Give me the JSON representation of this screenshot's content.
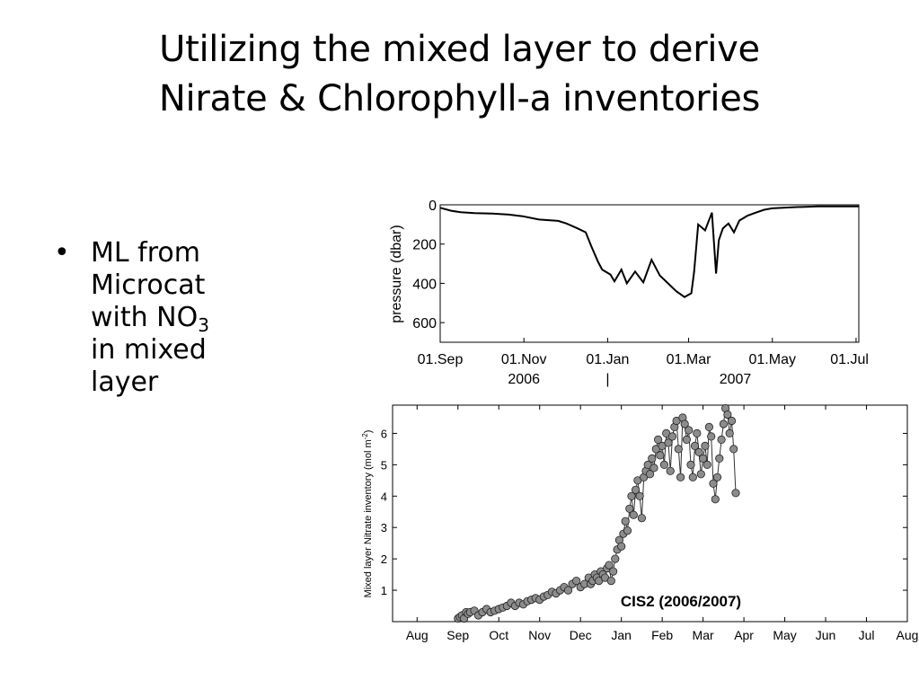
{
  "slide": {
    "title_lines": [
      "Utilizing the mixed layer to derive",
      "Nirate & Chlorophyll-a inventories"
    ],
    "bullet": {
      "marker": "•",
      "lines": [
        "ML from",
        "Microcat",
        "with NO",
        "in mixed",
        "layer"
      ],
      "subscript": "3"
    }
  },
  "chart_data": [
    {
      "type": "line",
      "title": "",
      "ylabel": "pressure (dbar)",
      "ylim": [
        0,
        700
      ],
      "y_inverted": true,
      "yticks": [
        0,
        200,
        400,
        600
      ],
      "xticks": [
        "01.Sep",
        "01.Nov",
        "01.Jan",
        "01.Mar",
        "01.May",
        "01.Jul"
      ],
      "xtick_sublabels": [
        "",
        "2006",
        "|",
        "2007",
        "",
        ""
      ],
      "color": "#000000",
      "series": [
        {
          "x_day": [
            0,
            8,
            15,
            25,
            38,
            50,
            60,
            72,
            86,
            92,
            100,
            106,
            110,
            115,
            118,
            124,
            127,
            132,
            136,
            142,
            148,
            154,
            160,
            166,
            172,
            178,
            183,
            185,
            188,
            193,
            198,
            201,
            203,
            206,
            210,
            214,
            218,
            224,
            230,
            236,
            242,
            250,
            258,
            266,
            275,
            285,
            295,
            305
          ],
          "y_dbar": [
            15,
            30,
            38,
            42,
            45,
            50,
            58,
            75,
            82,
            95,
            120,
            140,
            210,
            290,
            330,
            355,
            390,
            330,
            400,
            340,
            395,
            280,
            360,
            400,
            440,
            470,
            450,
            340,
            100,
            130,
            40,
            350,
            180,
            120,
            95,
            140,
            80,
            55,
            40,
            25,
            18,
            15,
            12,
            10,
            8,
            8,
            8,
            8
          ]
        }
      ]
    },
    {
      "type": "scatter",
      "title": "CIS2 (2006/2007)",
      "ylabel": "Mixed layer Nitrate inventory (mol m",
      "ylabel_superscript": "-2",
      "ylabel_suffix": ")",
      "ylim": [
        0,
        6.9
      ],
      "yticks": [
        1,
        2,
        3,
        4,
        5,
        6
      ],
      "xticks": [
        "Aug",
        "Sep",
        "Oct",
        "Nov",
        "Dec",
        "Jan",
        "Feb",
        "Mar",
        "Apr",
        "May",
        "Jun",
        "Jul",
        "Aug"
      ],
      "marker_color": "#8c8c8c",
      "series": [
        {
          "x_month": [
            1.0,
            1.05,
            1.1,
            1.15,
            1.2,
            1.25,
            1.3,
            1.4,
            1.5,
            1.6,
            1.7,
            1.8,
            1.9,
            2.0,
            2.1,
            2.2,
            2.3,
            2.4,
            2.5,
            2.6,
            2.7,
            2.8,
            2.9,
            3.0,
            3.1,
            3.2,
            3.3,
            3.4,
            3.5,
            3.6,
            3.7,
            3.8,
            3.9,
            4.0,
            4.1,
            4.2,
            4.25,
            4.3,
            4.35,
            4.4,
            4.45,
            4.5,
            4.55,
            4.6,
            4.65,
            4.7,
            4.75,
            4.8,
            4.85,
            4.9,
            4.95,
            5.0,
            5.05,
            5.1,
            5.15,
            5.2,
            5.25,
            5.3,
            5.35,
            5.4,
            5.45,
            5.5,
            5.55,
            5.6,
            5.65,
            5.7,
            5.75,
            5.8,
            5.85,
            5.9,
            5.95,
            6.0,
            6.05,
            6.1,
            6.15,
            6.2,
            6.25,
            6.3,
            6.35,
            6.4,
            6.45,
            6.5,
            6.55,
            6.6,
            6.65,
            6.7,
            6.75,
            6.8,
            6.85,
            6.9,
            6.95,
            7.0,
            7.05,
            7.1,
            7.15,
            7.2,
            7.25,
            7.3,
            7.35,
            7.4,
            7.45,
            7.5,
            7.55,
            7.6,
            7.65,
            7.7,
            7.75,
            7.8
          ],
          "y_mol": [
            0.1,
            0.15,
            0.2,
            0.1,
            0.3,
            0.25,
            0.3,
            0.35,
            0.2,
            0.3,
            0.4,
            0.3,
            0.35,
            0.4,
            0.45,
            0.5,
            0.6,
            0.5,
            0.6,
            0.55,
            0.65,
            0.7,
            0.75,
            0.7,
            0.8,
            0.85,
            0.95,
            0.9,
            1.0,
            1.1,
            1.0,
            1.2,
            1.3,
            1.1,
            1.2,
            1.4,
            1.2,
            1.3,
            1.5,
            1.4,
            1.3,
            1.6,
            1.5,
            1.4,
            1.7,
            1.8,
            1.3,
            1.6,
            2.0,
            2.3,
            2.6,
            2.4,
            2.8,
            3.2,
            2.9,
            3.6,
            4.0,
            3.4,
            4.2,
            4.5,
            4.0,
            3.3,
            4.6,
            4.8,
            5.0,
            4.7,
            5.2,
            4.9,
            5.5,
            5.8,
            5.3,
            5.6,
            5.0,
            6.0,
            5.7,
            4.8,
            5.9,
            6.2,
            6.4,
            5.5,
            4.6,
            6.5,
            6.3,
            5.8,
            6.1,
            5.0,
            4.6,
            5.6,
            6.0,
            5.4,
            4.7,
            5.2,
            5.6,
            5.0,
            6.2,
            5.9,
            4.4,
            3.9,
            4.6,
            5.2,
            5.8,
            6.3,
            6.8,
            6.6,
            6.0,
            6.4,
            5.5,
            4.1
          ]
        }
      ]
    }
  ]
}
